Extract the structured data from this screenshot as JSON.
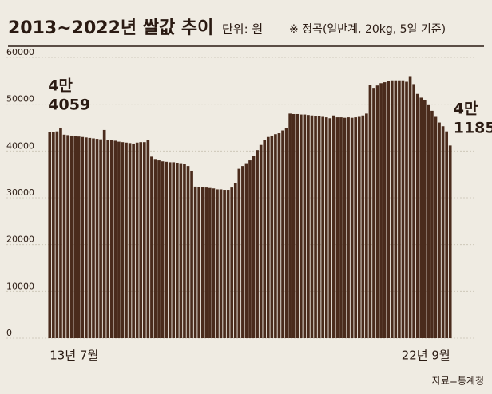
{
  "chart_data": {
    "type": "bar",
    "title": "2013~2022년 쌀값 추이",
    "subtitle": "단위: 원",
    "note": "※ 정곡(일반계, 20kg, 5일 기준)",
    "source": "자료=통계청",
    "color": "#4a2b1c",
    "grid": true,
    "ylim": [
      0,
      60000
    ],
    "yticks": [
      0,
      10000,
      20000,
      30000,
      40000,
      50000,
      60000
    ],
    "categories": [
      "13년 7월",
      null,
      null,
      null,
      null,
      null,
      null,
      null,
      null,
      null,
      null,
      null,
      null,
      null,
      null,
      null,
      null,
      null,
      null,
      null,
      null,
      null,
      null,
      null,
      null,
      null,
      null,
      null,
      null,
      null,
      null,
      null,
      null,
      null,
      null,
      null,
      null,
      null,
      null,
      null,
      null,
      null,
      null,
      null,
      null,
      null,
      null,
      null,
      null,
      null,
      null,
      null,
      null,
      null,
      null,
      null,
      null,
      null,
      null,
      null,
      null,
      null,
      null,
      null,
      null,
      null,
      null,
      null,
      null,
      null,
      null,
      null,
      null,
      null,
      null,
      null,
      null,
      null,
      null,
      null,
      null,
      null,
      null,
      null,
      null,
      null,
      null,
      null,
      null,
      null,
      null,
      null,
      null,
      null,
      null,
      null,
      null,
      null,
      null,
      null,
      null,
      null,
      null,
      null,
      null,
      null,
      null,
      null,
      null,
      null,
      "22년 9월"
    ],
    "values": [
      44059,
      44100,
      44200,
      45000,
      43500,
      43400,
      43300,
      43200,
      43100,
      43000,
      42900,
      42800,
      42700,
      42600,
      42500,
      44500,
      42400,
      42300,
      42200,
      42000,
      41900,
      41800,
      41700,
      41600,
      41800,
      41900,
      41900,
      42300,
      38800,
      38300,
      38000,
      37800,
      37700,
      37600,
      37600,
      37500,
      37400,
      37200,
      36800,
      35800,
      32400,
      32300,
      32300,
      32200,
      32100,
      32000,
      31800,
      31800,
      31700,
      31700,
      32200,
      33100,
      36200,
      36800,
      37400,
      38000,
      38900,
      40200,
      41300,
      42300,
      43000,
      43300,
      43600,
      43800,
      44400,
      44900,
      48000,
      47900,
      47900,
      47800,
      47800,
      47700,
      47600,
      47500,
      47500,
      47300,
      47200,
      47000,
      47600,
      47200,
      47200,
      47100,
      47200,
      47100,
      47200,
      47300,
      47600,
      48000,
      54100,
      53500,
      54000,
      54500,
      54700,
      55000,
      55100,
      55100,
      55100,
      55100,
      54800,
      56000,
      54300,
      52200,
      51400,
      50800,
      49800,
      48600,
      47300,
      46100,
      45300,
      44200,
      41185
    ],
    "value_labels": [
      "4만 4059",
      null,
      null,
      null,
      null,
      null,
      null,
      null,
      null,
      null,
      null,
      null,
      null,
      null,
      null,
      null,
      null,
      null,
      null,
      null,
      null,
      null,
      null,
      null,
      null,
      null,
      null,
      null,
      null,
      null,
      null,
      null,
      null,
      null,
      null,
      null,
      null,
      null,
      null,
      null,
      null,
      null,
      null,
      null,
      null,
      null,
      null,
      null,
      null,
      null,
      null,
      null,
      null,
      null,
      null,
      null,
      null,
      null,
      null,
      null,
      null,
      null,
      null,
      null,
      null,
      null,
      null,
      null,
      null,
      null,
      null,
      null,
      null,
      null,
      null,
      null,
      null,
      null,
      null,
      null,
      null,
      null,
      null,
      null,
      null,
      null,
      null,
      null,
      null,
      null,
      null,
      null,
      null,
      null,
      null,
      null,
      null,
      null,
      null,
      null,
      null,
      null,
      null,
      null,
      null,
      null,
      null,
      null,
      null,
      null,
      "4만 1185"
    ]
  }
}
